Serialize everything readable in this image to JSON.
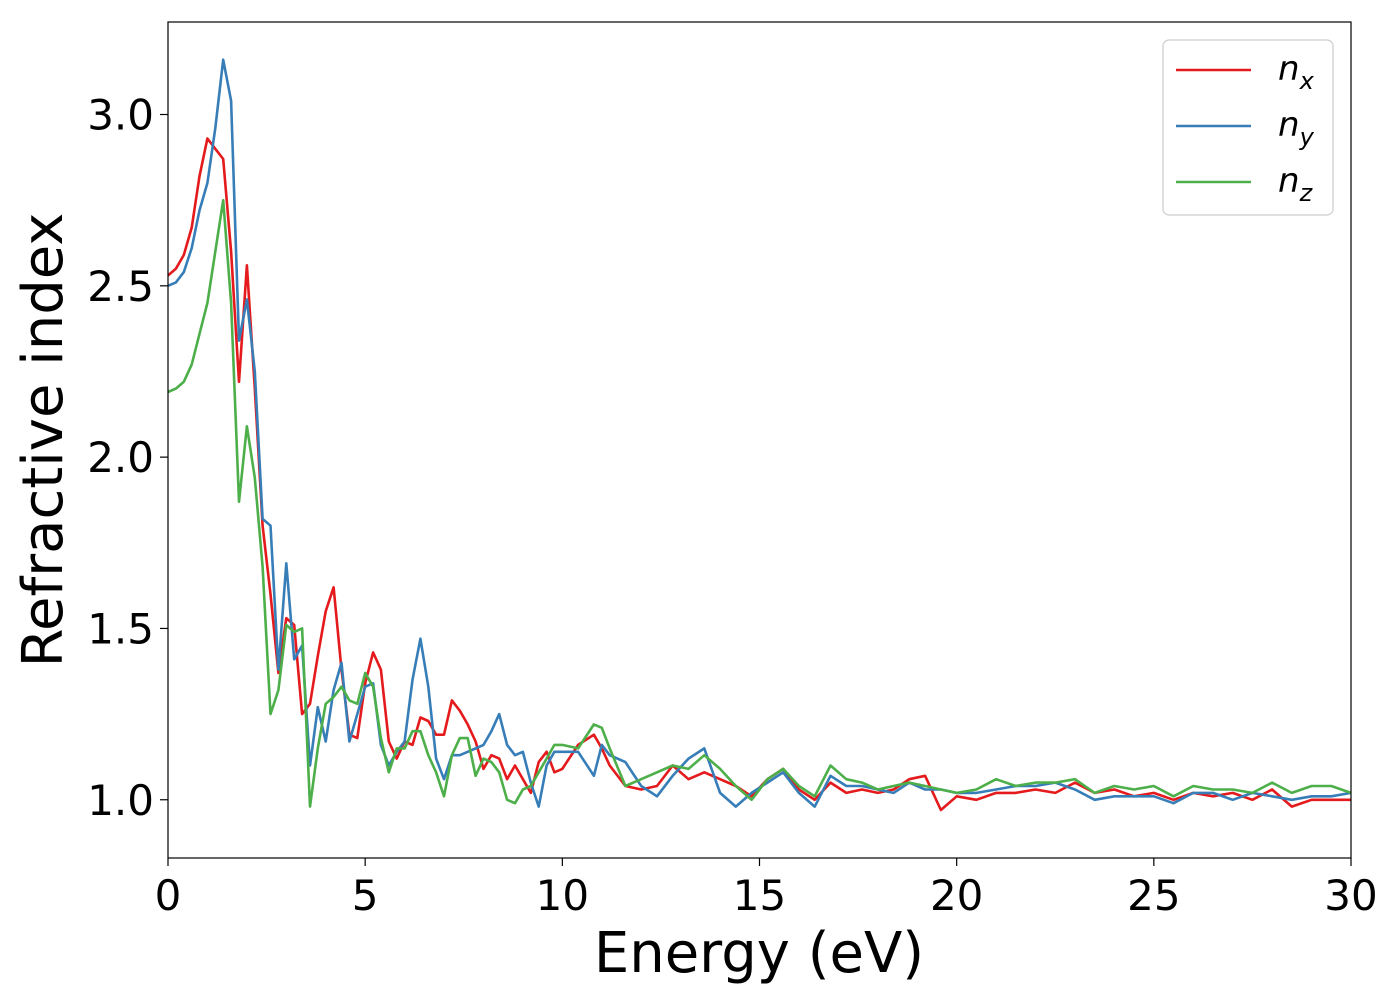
{
  "chart_data": {
    "type": "line",
    "title": "",
    "xlabel": "Energy (eV)",
    "ylabel": "Refractive index",
    "xlim": [
      0,
      30
    ],
    "ylim": [
      0.83,
      3.27
    ],
    "xticks": [
      0,
      5,
      10,
      15,
      20,
      25,
      30
    ],
    "xtick_labels": [
      "0",
      "5",
      "10",
      "15",
      "20",
      "25",
      "30"
    ],
    "yticks": [
      1.0,
      1.5,
      2.0,
      2.5,
      3.0
    ],
    "ytick_labels": [
      "1.0",
      "1.5",
      "2.0",
      "2.5",
      "3.0"
    ],
    "grid": false,
    "legend_position": "top-right",
    "x": [
      0,
      0.2,
      0.4,
      0.6,
      0.8,
      1.0,
      1.2,
      1.4,
      1.6,
      1.8,
      2.0,
      2.2,
      2.4,
      2.6,
      2.8,
      3.0,
      3.2,
      3.4,
      3.6,
      3.8,
      4.0,
      4.2,
      4.4,
      4.6,
      4.8,
      5.0,
      5.2,
      5.4,
      5.6,
      5.8,
      6.0,
      6.2,
      6.4,
      6.6,
      6.8,
      7.0,
      7.2,
      7.4,
      7.6,
      7.8,
      8.0,
      8.2,
      8.4,
      8.6,
      8.8,
      9.0,
      9.2,
      9.4,
      9.6,
      9.8,
      10.0,
      10.4,
      10.8,
      11.0,
      11.2,
      11.6,
      12.0,
      12.4,
      12.8,
      13.2,
      13.6,
      14.0,
      14.4,
      14.8,
      15.2,
      15.6,
      16.0,
      16.4,
      16.8,
      17.2,
      17.6,
      18.0,
      18.4,
      18.8,
      19.2,
      19.6,
      20.0,
      20.5,
      21.0,
      21.5,
      22.0,
      22.5,
      23.0,
      23.5,
      24.0,
      24.5,
      25.0,
      25.5,
      26.0,
      26.5,
      27.0,
      27.5,
      28.0,
      28.5,
      29.0,
      29.5,
      30.0
    ],
    "series": [
      {
        "name": "n_x",
        "label_base": "n",
        "label_sub": "x",
        "color": "#e41a1c",
        "values": [
          2.53,
          2.55,
          2.59,
          2.67,
          2.82,
          2.93,
          2.9,
          2.87,
          2.6,
          2.22,
          2.56,
          2.2,
          1.8,
          1.6,
          1.37,
          1.53,
          1.51,
          1.25,
          1.28,
          1.42,
          1.55,
          1.62,
          1.38,
          1.19,
          1.18,
          1.34,
          1.43,
          1.38,
          1.17,
          1.12,
          1.17,
          1.16,
          1.24,
          1.23,
          1.19,
          1.19,
          1.29,
          1.26,
          1.22,
          1.17,
          1.09,
          1.13,
          1.12,
          1.06,
          1.1,
          1.06,
          1.02,
          1.11,
          1.14,
          1.08,
          1.09,
          1.16,
          1.19,
          1.15,
          1.1,
          1.04,
          1.03,
          1.04,
          1.1,
          1.06,
          1.08,
          1.06,
          1.04,
          1.01,
          1.06,
          1.09,
          1.03,
          1.0,
          1.05,
          1.02,
          1.03,
          1.02,
          1.03,
          1.06,
          1.07,
          0.97,
          1.01,
          1.0,
          1.02,
          1.02,
          1.03,
          1.02,
          1.05,
          1.02,
          1.03,
          1.01,
          1.02,
          1.0,
          1.02,
          1.01,
          1.02,
          1.0,
          1.03,
          0.98,
          1.0,
          1.0,
          1.0
        ]
      },
      {
        "name": "n_y",
        "label_base": "n",
        "label_sub": "y",
        "color": "#377eb8",
        "values": [
          2.5,
          2.51,
          2.54,
          2.61,
          2.72,
          2.8,
          2.96,
          3.16,
          3.04,
          2.34,
          2.46,
          2.25,
          1.82,
          1.8,
          1.38,
          1.69,
          1.41,
          1.45,
          1.1,
          1.27,
          1.17,
          1.32,
          1.4,
          1.17,
          1.25,
          1.33,
          1.34,
          1.16,
          1.1,
          1.14,
          1.17,
          1.35,
          1.47,
          1.33,
          1.12,
          1.06,
          1.13,
          1.13,
          1.14,
          1.15,
          1.16,
          1.2,
          1.25,
          1.16,
          1.13,
          1.14,
          1.05,
          0.98,
          1.1,
          1.14,
          1.14,
          1.14,
          1.07,
          1.16,
          1.13,
          1.11,
          1.04,
          1.01,
          1.07,
          1.12,
          1.15,
          1.02,
          0.98,
          1.02,
          1.05,
          1.08,
          1.02,
          0.98,
          1.07,
          1.04,
          1.04,
          1.03,
          1.02,
          1.05,
          1.03,
          1.03,
          1.02,
          1.02,
          1.03,
          1.04,
          1.04,
          1.05,
          1.03,
          1.0,
          1.01,
          1.01,
          1.01,
          0.99,
          1.02,
          1.02,
          1.0,
          1.02,
          1.01,
          1.0,
          1.01,
          1.01,
          1.02
        ]
      },
      {
        "name": "n_z",
        "label_base": "n",
        "label_sub": "z",
        "color": "#4daf4a",
        "values": [
          2.19,
          2.2,
          2.22,
          2.27,
          2.36,
          2.45,
          2.6,
          2.75,
          2.45,
          1.87,
          2.09,
          1.94,
          1.68,
          1.25,
          1.32,
          1.51,
          1.49,
          1.5,
          0.98,
          1.15,
          1.28,
          1.3,
          1.33,
          1.29,
          1.28,
          1.37,
          1.33,
          1.18,
          1.08,
          1.15,
          1.15,
          1.2,
          1.2,
          1.13,
          1.08,
          1.01,
          1.13,
          1.18,
          1.18,
          1.07,
          1.12,
          1.11,
          1.08,
          1.0,
          0.99,
          1.03,
          1.04,
          1.08,
          1.12,
          1.16,
          1.16,
          1.15,
          1.22,
          1.21,
          1.15,
          1.04,
          1.06,
          1.08,
          1.1,
          1.09,
          1.13,
          1.09,
          1.04,
          1.0,
          1.06,
          1.09,
          1.04,
          1.01,
          1.1,
          1.06,
          1.05,
          1.03,
          1.04,
          1.05,
          1.04,
          1.03,
          1.02,
          1.03,
          1.06,
          1.04,
          1.05,
          1.05,
          1.06,
          1.02,
          1.04,
          1.03,
          1.04,
          1.01,
          1.04,
          1.03,
          1.03,
          1.02,
          1.05,
          1.02,
          1.04,
          1.04,
          1.02
        ]
      }
    ]
  }
}
